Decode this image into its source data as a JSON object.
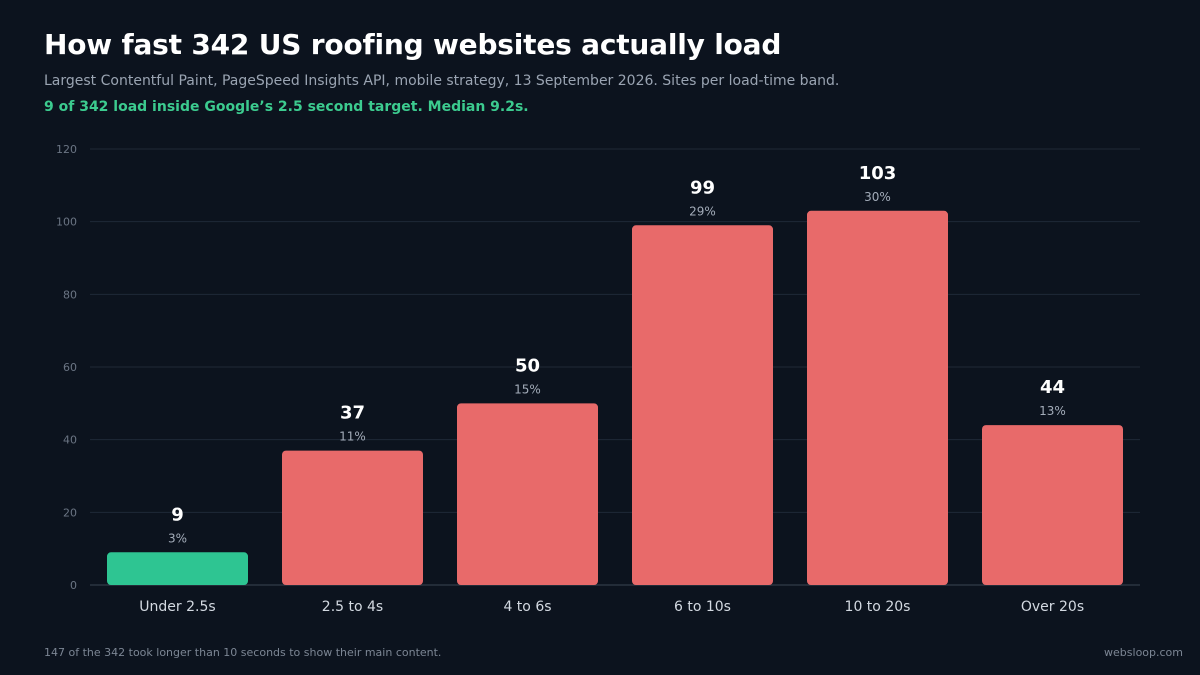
{
  "header": {
    "title": "How fast 342 US roofing websites actually load",
    "subtitle": "Largest Contentful Paint, PageSpeed Insights API, mobile strategy, 13 September 2026. Sites per load-time band.",
    "highlight": "9 of 342 load inside Google’s 2.5 second target. Median 9.2s."
  },
  "colors": {
    "background": "#0c131e",
    "good": "#2ec592",
    "bad": "#e86a6a",
    "gridline": "#1f2937",
    "highlight_text": "#3ccb8f"
  },
  "chart_data": {
    "type": "bar",
    "categories": [
      "Under 2.5s",
      "2.5 to 4s",
      "4 to 6s",
      "6 to 10s",
      "10 to 20s",
      "Over 20s"
    ],
    "values": [
      9,
      37,
      50,
      99,
      103,
      44
    ],
    "percent_labels": [
      "3%",
      "11%",
      "15%",
      "29%",
      "30%",
      "13%"
    ],
    "bar_status": [
      "good",
      "bad",
      "bad",
      "bad",
      "bad",
      "bad"
    ],
    "yticks": [
      0,
      20,
      40,
      60,
      80,
      100,
      120
    ],
    "ylim": [
      0,
      120
    ],
    "grid": true
  },
  "footer": {
    "note": "147 of the 342 took longer than 10 seconds to show their main content.",
    "brand": "websloop.com"
  }
}
